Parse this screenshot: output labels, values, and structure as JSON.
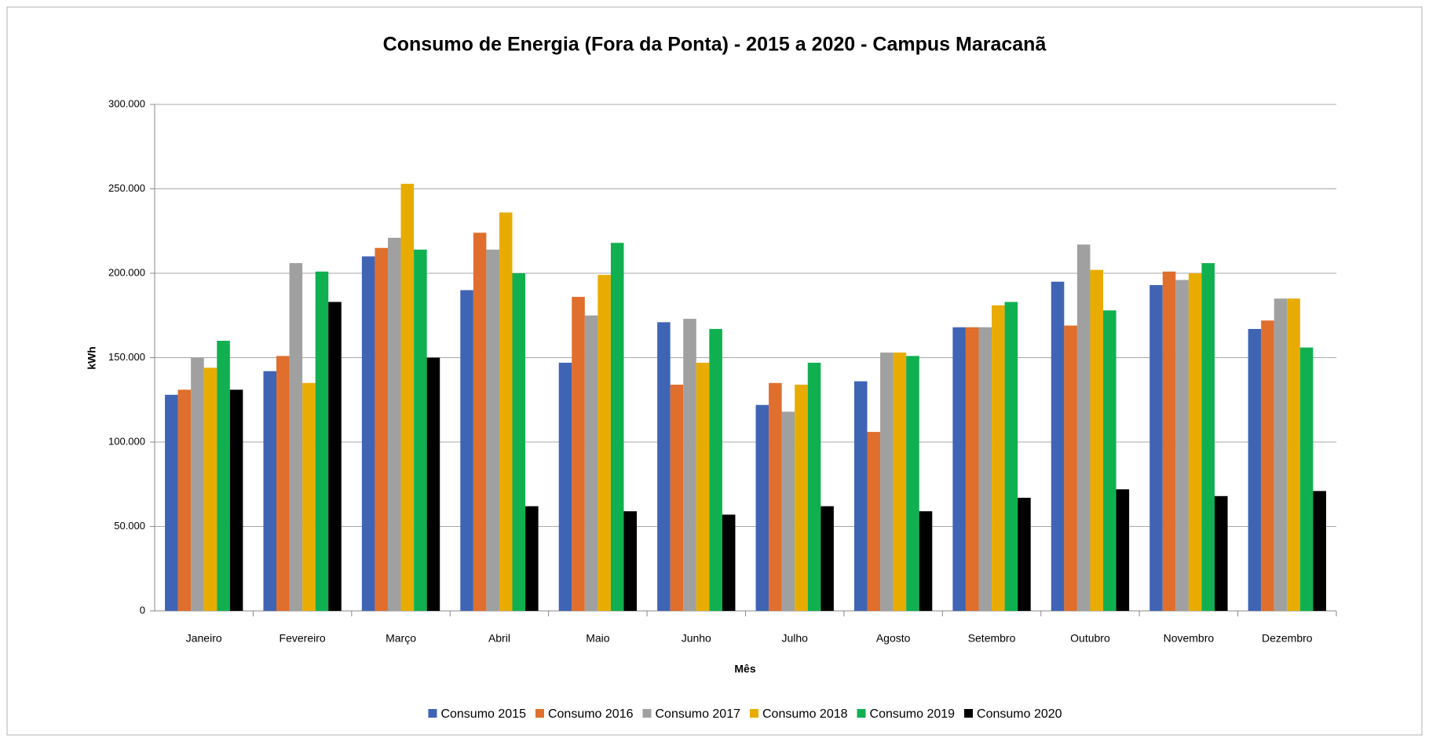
{
  "chart_data": {
    "type": "bar",
    "title": "Consumo de Energia (Fora da Ponta) - 2015 a 2020 - Campus Maracanã",
    "x_label": "Mês",
    "y_label": "kWh",
    "categories": [
      "Janeiro",
      "Fevereiro",
      "Março",
      "Abril",
      "Maio",
      "Junho",
      "Julho",
      "Agosto",
      "Setembro",
      "Outubro",
      "Novembro",
      "Dezembro"
    ],
    "series": [
      {
        "name": "Consumo 2015",
        "color": "#4064b4",
        "values": [
          128000,
          142000,
          210000,
          190000,
          147000,
          171000,
          122000,
          136000,
          168000,
          195000,
          193000,
          167000
        ]
      },
      {
        "name": "Consumo 2016",
        "color": "#e06e2c",
        "values": [
          131000,
          151000,
          215000,
          224000,
          186000,
          134000,
          135000,
          106000,
          168000,
          169000,
          201000,
          172000
        ]
      },
      {
        "name": "Consumo 2017",
        "color": "#a0a0a0",
        "values": [
          150000,
          206000,
          221000,
          214000,
          175000,
          173000,
          118000,
          153000,
          168000,
          217000,
          196000,
          185000
        ]
      },
      {
        "name": "Consumo 2018",
        "color": "#e8ac00",
        "values": [
          144000,
          135000,
          253000,
          236000,
          199000,
          147000,
          134000,
          153000,
          181000,
          202000,
          200000,
          185000
        ]
      },
      {
        "name": "Consumo 2019",
        "color": "#10b050",
        "values": [
          160000,
          201000,
          214000,
          200000,
          218000,
          167000,
          147000,
          151000,
          183000,
          178000,
          206000,
          156000
        ]
      },
      {
        "name": "Consumo 2020",
        "color": "#000000",
        "values": [
          131000,
          183000,
          150000,
          62000,
          59000,
          57000,
          62000,
          59000,
          67000,
          72000,
          68000,
          71000
        ]
      }
    ],
    "ylim": [
      0,
      300000
    ],
    "yticks": [
      0,
      {
        "value": 50000,
        "label": "50.000"
      },
      {
        "value": 100000,
        "label": "100.000"
      },
      {
        "value": 150000,
        "label": "150.000"
      },
      {
        "value": 200000,
        "label": "200.000"
      },
      {
        "value": 250000,
        "label": "250.000"
      },
      {
        "value": 300000,
        "label": "300.000"
      }
    ],
    "grid": true,
    "legend": "bottom"
  }
}
